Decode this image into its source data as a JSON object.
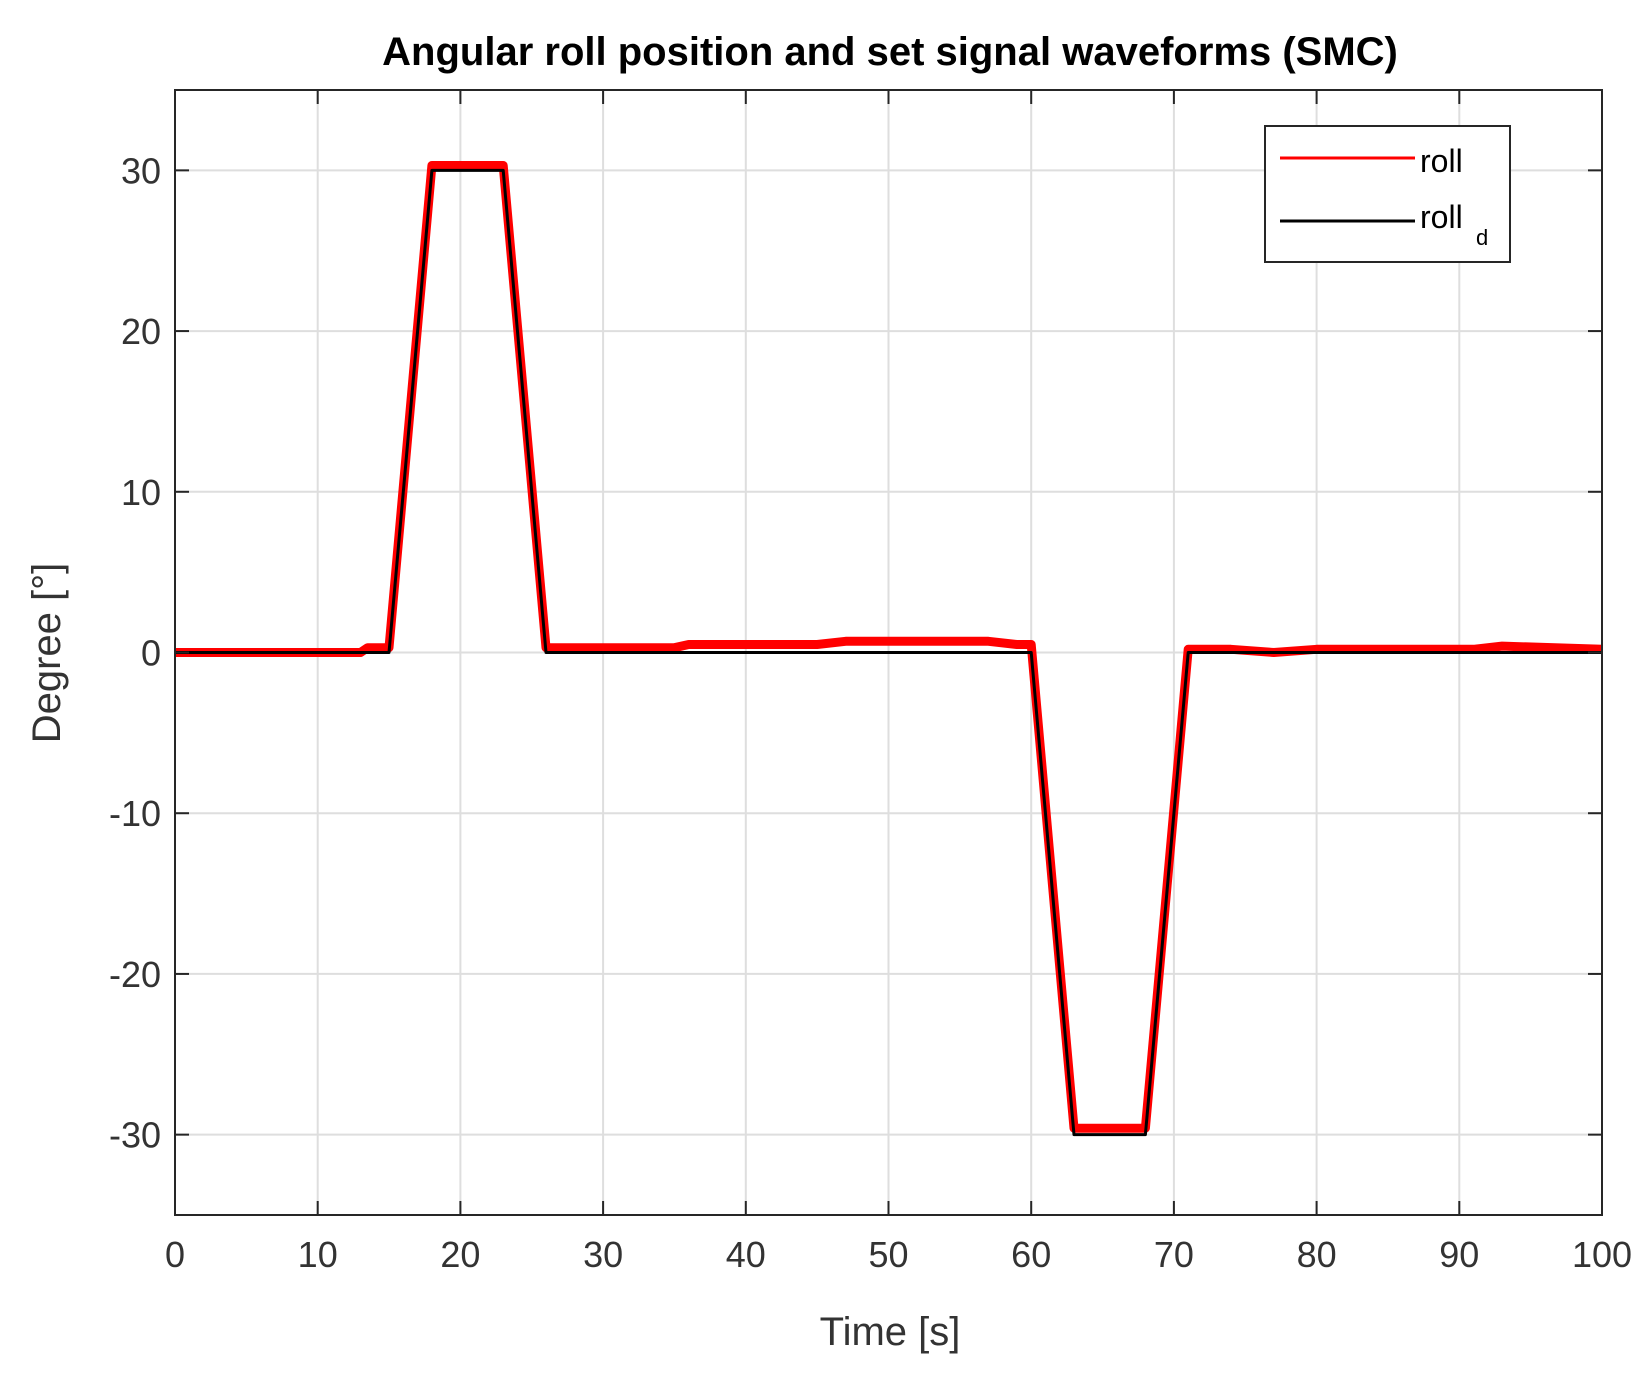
{
  "chart_data": {
    "type": "line",
    "title": "Angular roll position and set signal waveforms (SMC)",
    "xlabel": "Time [s]",
    "ylabel": "Degree [°]",
    "xlim": [
      0,
      100
    ],
    "ylim": [
      -35,
      35
    ],
    "xticks": [
      0,
      10,
      20,
      30,
      40,
      50,
      60,
      70,
      80,
      90,
      100
    ],
    "xtick_labels": [
      "0",
      "10",
      "20",
      "30",
      "40",
      "50",
      "60",
      "70",
      "80",
      "90",
      "100"
    ],
    "yticks": [
      30,
      20,
      10,
      0,
      -10,
      -20,
      -30
    ],
    "ytick_labels": [
      "30",
      "20",
      "10",
      "0",
      "-10",
      "-20",
      "-30"
    ],
    "grid": true,
    "legend_position": "top-right",
    "series": [
      {
        "name": "roll",
        "color": "#ff0000",
        "x": [
          0,
          13,
          13.5,
          15,
          18,
          23,
          26,
          35,
          36,
          45,
          47,
          57,
          59,
          60,
          63,
          68,
          71,
          74,
          77,
          80,
          91,
          93,
          100
        ],
        "y": [
          0,
          0,
          0.3,
          0.3,
          30.3,
          30.3,
          0.3,
          0.3,
          0.5,
          0.5,
          0.7,
          0.7,
          0.5,
          0.5,
          -29.6,
          -29.6,
          0.2,
          0.2,
          0,
          0.2,
          0.2,
          0.4,
          0.2
        ]
      },
      {
        "name": "roll",
        "name_subscript": "d",
        "color": "#000000",
        "x": [
          0,
          15,
          18,
          23,
          26,
          60,
          63,
          68,
          71,
          100
        ],
        "y": [
          0,
          0,
          30,
          30,
          0,
          0,
          -30,
          -30,
          0,
          0
        ]
      }
    ]
  },
  "legend": {
    "items": [
      {
        "label": "roll",
        "sub": ""
      },
      {
        "label": "roll",
        "sub": "d"
      }
    ]
  }
}
